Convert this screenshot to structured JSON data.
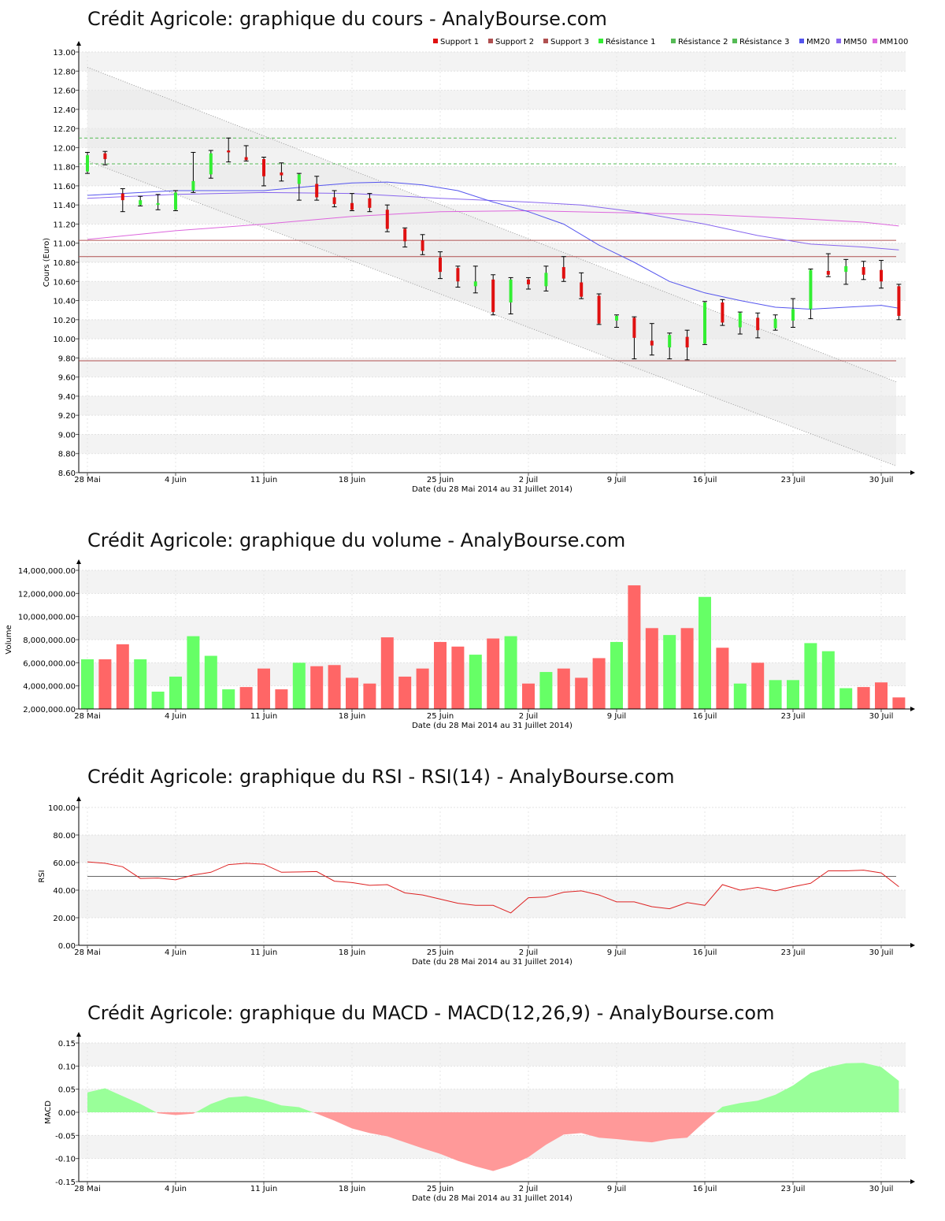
{
  "colors": {
    "up": "#33ee33",
    "down": "#e01010",
    "vol_up": "#66ff66",
    "vol_down": "#ff6666",
    "mm20": "#5555ee",
    "mm50": "#8866ee",
    "mm100": "#dd66dd",
    "support": "#b05050",
    "resistance": "#55bb55",
    "rsi": "#dd2222",
    "macd_pos": "#99ff99",
    "macd_neg": "#ff9999"
  },
  "x_ticks": [
    "28 Mai",
    "4 Juin",
    "11 Juin",
    "18 Juin",
    "25 Juin",
    "2 Juil",
    "9 Juil",
    "16 Juil",
    "23 Juil",
    "30 Juil"
  ],
  "x_label": "Date (du 28 Mai 2014 au 31 Juillet 2014)",
  "chart_data": [
    {
      "id": "price",
      "type": "candlestick",
      "title": "Crédit Agricole: graphique du cours - AnalyBourse.com",
      "ylabel": "Cours (Euro)",
      "ylim": [
        8.6,
        13.0
      ],
      "yticks": [
        "8.60",
        "8.80",
        "9.00",
        "9.20",
        "9.40",
        "9.60",
        "9.80",
        "10.00",
        "10.20",
        "10.40",
        "10.60",
        "10.80",
        "11.00",
        "11.20",
        "11.40",
        "11.60",
        "11.80",
        "12.00",
        "12.20",
        "12.40",
        "12.60",
        "12.80",
        "13.00"
      ],
      "legend": [
        "Support 1",
        "Support 2",
        "Support 3",
        "Résistance 1",
        "Résistance 2",
        "Résistance 3",
        "MM20",
        "MM50",
        "MM100"
      ],
      "supports": [
        11.03,
        10.86,
        9.77
      ],
      "resistances": [
        12.1,
        11.83
      ],
      "channel_upper": [
        12.84,
        9.55
      ],
      "channel_lower": [
        11.86,
        8.67
      ],
      "candles": [
        {
          "o": 11.75,
          "h": 11.95,
          "l": 11.73,
          "c": 11.92
        },
        {
          "o": 11.94,
          "h": 11.96,
          "l": 11.82,
          "c": 11.88
        },
        {
          "o": 11.52,
          "h": 11.57,
          "l": 11.33,
          "c": 11.45
        },
        {
          "o": 11.4,
          "h": 11.49,
          "l": 11.39,
          "c": 11.45
        },
        {
          "o": 11.4,
          "h": 11.51,
          "l": 11.35,
          "c": 11.42
        },
        {
          "o": 11.35,
          "h": 11.55,
          "l": 11.34,
          "c": 11.53
        },
        {
          "o": 11.55,
          "h": 11.95,
          "l": 11.53,
          "c": 11.65
        },
        {
          "o": 11.72,
          "h": 11.97,
          "l": 11.68,
          "c": 11.94
        },
        {
          "o": 11.97,
          "h": 12.1,
          "l": 11.85,
          "c": 11.95
        },
        {
          "o": 11.9,
          "h": 12.02,
          "l": 11.86,
          "c": 11.87
        },
        {
          "o": 11.88,
          "h": 11.9,
          "l": 11.6,
          "c": 11.7
        },
        {
          "o": 11.74,
          "h": 11.84,
          "l": 11.65,
          "c": 11.71
        },
        {
          "o": 11.62,
          "h": 11.73,
          "l": 11.45,
          "c": 11.72
        },
        {
          "o": 11.62,
          "h": 11.7,
          "l": 11.45,
          "c": 11.48
        },
        {
          "o": 11.48,
          "h": 11.55,
          "l": 11.38,
          "c": 11.41
        },
        {
          "o": 11.42,
          "h": 11.52,
          "l": 11.34,
          "c": 11.35
        },
        {
          "o": 11.47,
          "h": 11.52,
          "l": 11.33,
          "c": 11.37
        },
        {
          "o": 11.35,
          "h": 11.4,
          "l": 11.12,
          "c": 11.15
        },
        {
          "o": 11.15,
          "h": 11.16,
          "l": 10.96,
          "c": 11.02
        },
        {
          "o": 11.03,
          "h": 11.09,
          "l": 10.88,
          "c": 10.92
        },
        {
          "o": 10.85,
          "h": 10.91,
          "l": 10.63,
          "c": 10.7
        },
        {
          "o": 10.74,
          "h": 10.76,
          "l": 10.54,
          "c": 10.6
        },
        {
          "o": 10.55,
          "h": 10.76,
          "l": 10.48,
          "c": 10.6
        },
        {
          "o": 10.62,
          "h": 10.67,
          "l": 10.25,
          "c": 10.28
        },
        {
          "o": 10.38,
          "h": 10.64,
          "l": 10.26,
          "c": 10.62
        },
        {
          "o": 10.62,
          "h": 10.64,
          "l": 10.52,
          "c": 10.57
        },
        {
          "o": 10.55,
          "h": 10.76,
          "l": 10.5,
          "c": 10.69
        },
        {
          "o": 10.75,
          "h": 10.86,
          "l": 10.6,
          "c": 10.63
        },
        {
          "o": 10.59,
          "h": 10.69,
          "l": 10.42,
          "c": 10.44
        },
        {
          "o": 10.45,
          "h": 10.47,
          "l": 10.15,
          "c": 10.16
        },
        {
          "o": 10.19,
          "h": 10.25,
          "l": 10.12,
          "c": 10.24
        },
        {
          "o": 10.22,
          "h": 10.23,
          "l": 9.79,
          "c": 10.01
        },
        {
          "o": 9.98,
          "h": 10.16,
          "l": 9.83,
          "c": 9.93
        },
        {
          "o": 9.91,
          "h": 10.06,
          "l": 9.79,
          "c": 10.04
        },
        {
          "o": 10.02,
          "h": 10.09,
          "l": 9.78,
          "c": 9.91
        },
        {
          "o": 9.95,
          "h": 10.39,
          "l": 9.94,
          "c": 10.38
        },
        {
          "o": 10.38,
          "h": 10.41,
          "l": 10.14,
          "c": 10.17
        },
        {
          "o": 10.12,
          "h": 10.28,
          "l": 10.05,
          "c": 10.27
        },
        {
          "o": 10.22,
          "h": 10.27,
          "l": 10.01,
          "c": 10.09
        },
        {
          "o": 10.11,
          "h": 10.25,
          "l": 10.09,
          "c": 10.21
        },
        {
          "o": 10.19,
          "h": 10.42,
          "l": 10.12,
          "c": 10.31
        },
        {
          "o": 10.31,
          "h": 10.73,
          "l": 10.21,
          "c": 10.72
        },
        {
          "o": 10.71,
          "h": 10.89,
          "l": 10.65,
          "c": 10.67
        },
        {
          "o": 10.7,
          "h": 10.83,
          "l": 10.57,
          "c": 10.76
        },
        {
          "o": 10.75,
          "h": 10.81,
          "l": 10.62,
          "c": 10.67
        },
        {
          "o": 10.72,
          "h": 10.82,
          "l": 10.53,
          "c": 10.6
        },
        {
          "o": 10.55,
          "h": 10.57,
          "l": 10.2,
          "c": 10.24
        }
      ],
      "mm20": [
        [
          0,
          11.5
        ],
        [
          5,
          11.55
        ],
        [
          10,
          11.55
        ],
        [
          13,
          11.6
        ],
        [
          15,
          11.63
        ],
        [
          17,
          11.64
        ],
        [
          19,
          11.61
        ],
        [
          21,
          11.55
        ],
        [
          23,
          11.43
        ],
        [
          25,
          11.33
        ],
        [
          27,
          11.2
        ],
        [
          29,
          10.98
        ],
        [
          31,
          10.8
        ],
        [
          33,
          10.6
        ],
        [
          35,
          10.48
        ],
        [
          37,
          10.4
        ],
        [
          39,
          10.33
        ],
        [
          41,
          10.31
        ],
        [
          43,
          10.33
        ],
        [
          45,
          10.35
        ],
        [
          46,
          10.32
        ]
      ],
      "mm50": [
        [
          0,
          11.47
        ],
        [
          5,
          11.51
        ],
        [
          10,
          11.53
        ],
        [
          15,
          11.52
        ],
        [
          20,
          11.47
        ],
        [
          25,
          11.43
        ],
        [
          28,
          11.4
        ],
        [
          31,
          11.33
        ],
        [
          35,
          11.2
        ],
        [
          38,
          11.08
        ],
        [
          41,
          10.99
        ],
        [
          44,
          10.96
        ],
        [
          46,
          10.93
        ]
      ],
      "mm100": [
        [
          0,
          11.04
        ],
        [
          5,
          11.13
        ],
        [
          10,
          11.2
        ],
        [
          15,
          11.28
        ],
        [
          20,
          11.33
        ],
        [
          25,
          11.34
        ],
        [
          30,
          11.32
        ],
        [
          35,
          11.3
        ],
        [
          40,
          11.26
        ],
        [
          44,
          11.22
        ],
        [
          46,
          11.18
        ]
      ]
    },
    {
      "id": "volume",
      "type": "bar",
      "title": "Crédit Agricole: graphique du volume - AnalyBourse.com",
      "ylabel": "Volume",
      "ylim": [
        2000000,
        14000000
      ],
      "yticks": [
        "2,000,000.00",
        "4,000,000.00",
        "6,000,000.00",
        "8,000,000.00",
        "10,000,000.00",
        "12,000,000.00",
        "14,000,000.00"
      ],
      "values": [
        6300000,
        6300000,
        7600000,
        6300000,
        3500000,
        4800000,
        8300000,
        6600000,
        3700000,
        3900000,
        5500000,
        3700000,
        6000000,
        5700000,
        5800000,
        4700000,
        4200000,
        8200000,
        4800000,
        5500000,
        7800000,
        7400000,
        6700000,
        8100000,
        8300000,
        4200000,
        5200000,
        5500000,
        4700000,
        6400000,
        7800000,
        12700000,
        9000000,
        8400000,
        9000000,
        11700000,
        7300000,
        4200000,
        6000000,
        4500000,
        4500000,
        7700000,
        7000000,
        3800000,
        3900000,
        4300000,
        3000000
      ],
      "up": [
        true,
        false,
        false,
        true,
        true,
        true,
        true,
        true,
        true,
        false,
        false,
        false,
        true,
        false,
        false,
        false,
        false,
        false,
        false,
        false,
        false,
        false,
        true,
        false,
        true,
        false,
        true,
        false,
        false,
        false,
        true,
        false,
        false,
        true,
        false,
        true,
        false,
        true,
        false,
        true,
        true,
        true,
        true,
        true,
        false,
        false,
        false
      ]
    },
    {
      "id": "rsi",
      "type": "line",
      "title": "Crédit Agricole: graphique du RSI - RSI(14) - AnalyBourse.com",
      "ylabel": "RSI",
      "ylim": [
        0,
        100
      ],
      "yticks": [
        "0.00",
        "20.00",
        "40.00",
        "60.00",
        "80.00",
        "100.00"
      ],
      "reference": 50,
      "values": [
        60.5,
        59.5,
        57,
        48.5,
        48.8,
        47.5,
        51,
        53,
        58.5,
        59.5,
        58.8,
        53,
        53.2,
        53.5,
        46.5,
        45.5,
        43.5,
        44,
        38,
        36.5,
        33.5,
        30.5,
        29,
        29,
        23.5,
        34.5,
        35,
        38.5,
        39.5,
        36.5,
        31.5,
        31.5,
        28,
        26.5,
        31,
        29,
        44,
        40,
        42,
        39.5,
        42.5,
        45,
        54,
        54,
        54.5,
        52.5,
        42.5
      ]
    },
    {
      "id": "macd",
      "type": "area",
      "title": "Crédit Agricole: graphique du MACD - MACD(12,26,9) - AnalyBourse.com",
      "ylabel": "MACD",
      "ylim": [
        -0.15,
        0.15
      ],
      "yticks": [
        "-0.15",
        "-0.10",
        "-0.05",
        "0.00",
        "0.05",
        "0.10",
        "0.15"
      ],
      "values": [
        0.043,
        0.052,
        0.035,
        0.018,
        -0.002,
        -0.006,
        -0.003,
        0.018,
        0.032,
        0.035,
        0.027,
        0.015,
        0.011,
        -0.003,
        -0.018,
        -0.035,
        -0.045,
        -0.052,
        -0.065,
        -0.078,
        -0.09,
        -0.105,
        -0.117,
        -0.127,
        -0.115,
        -0.097,
        -0.07,
        -0.048,
        -0.045,
        -0.055,
        -0.058,
        -0.062,
        -0.065,
        -0.058,
        -0.055,
        -0.02,
        0.012,
        0.02,
        0.025,
        0.038,
        0.058,
        0.085,
        0.098,
        0.106,
        0.107,
        0.098,
        0.068
      ]
    }
  ]
}
